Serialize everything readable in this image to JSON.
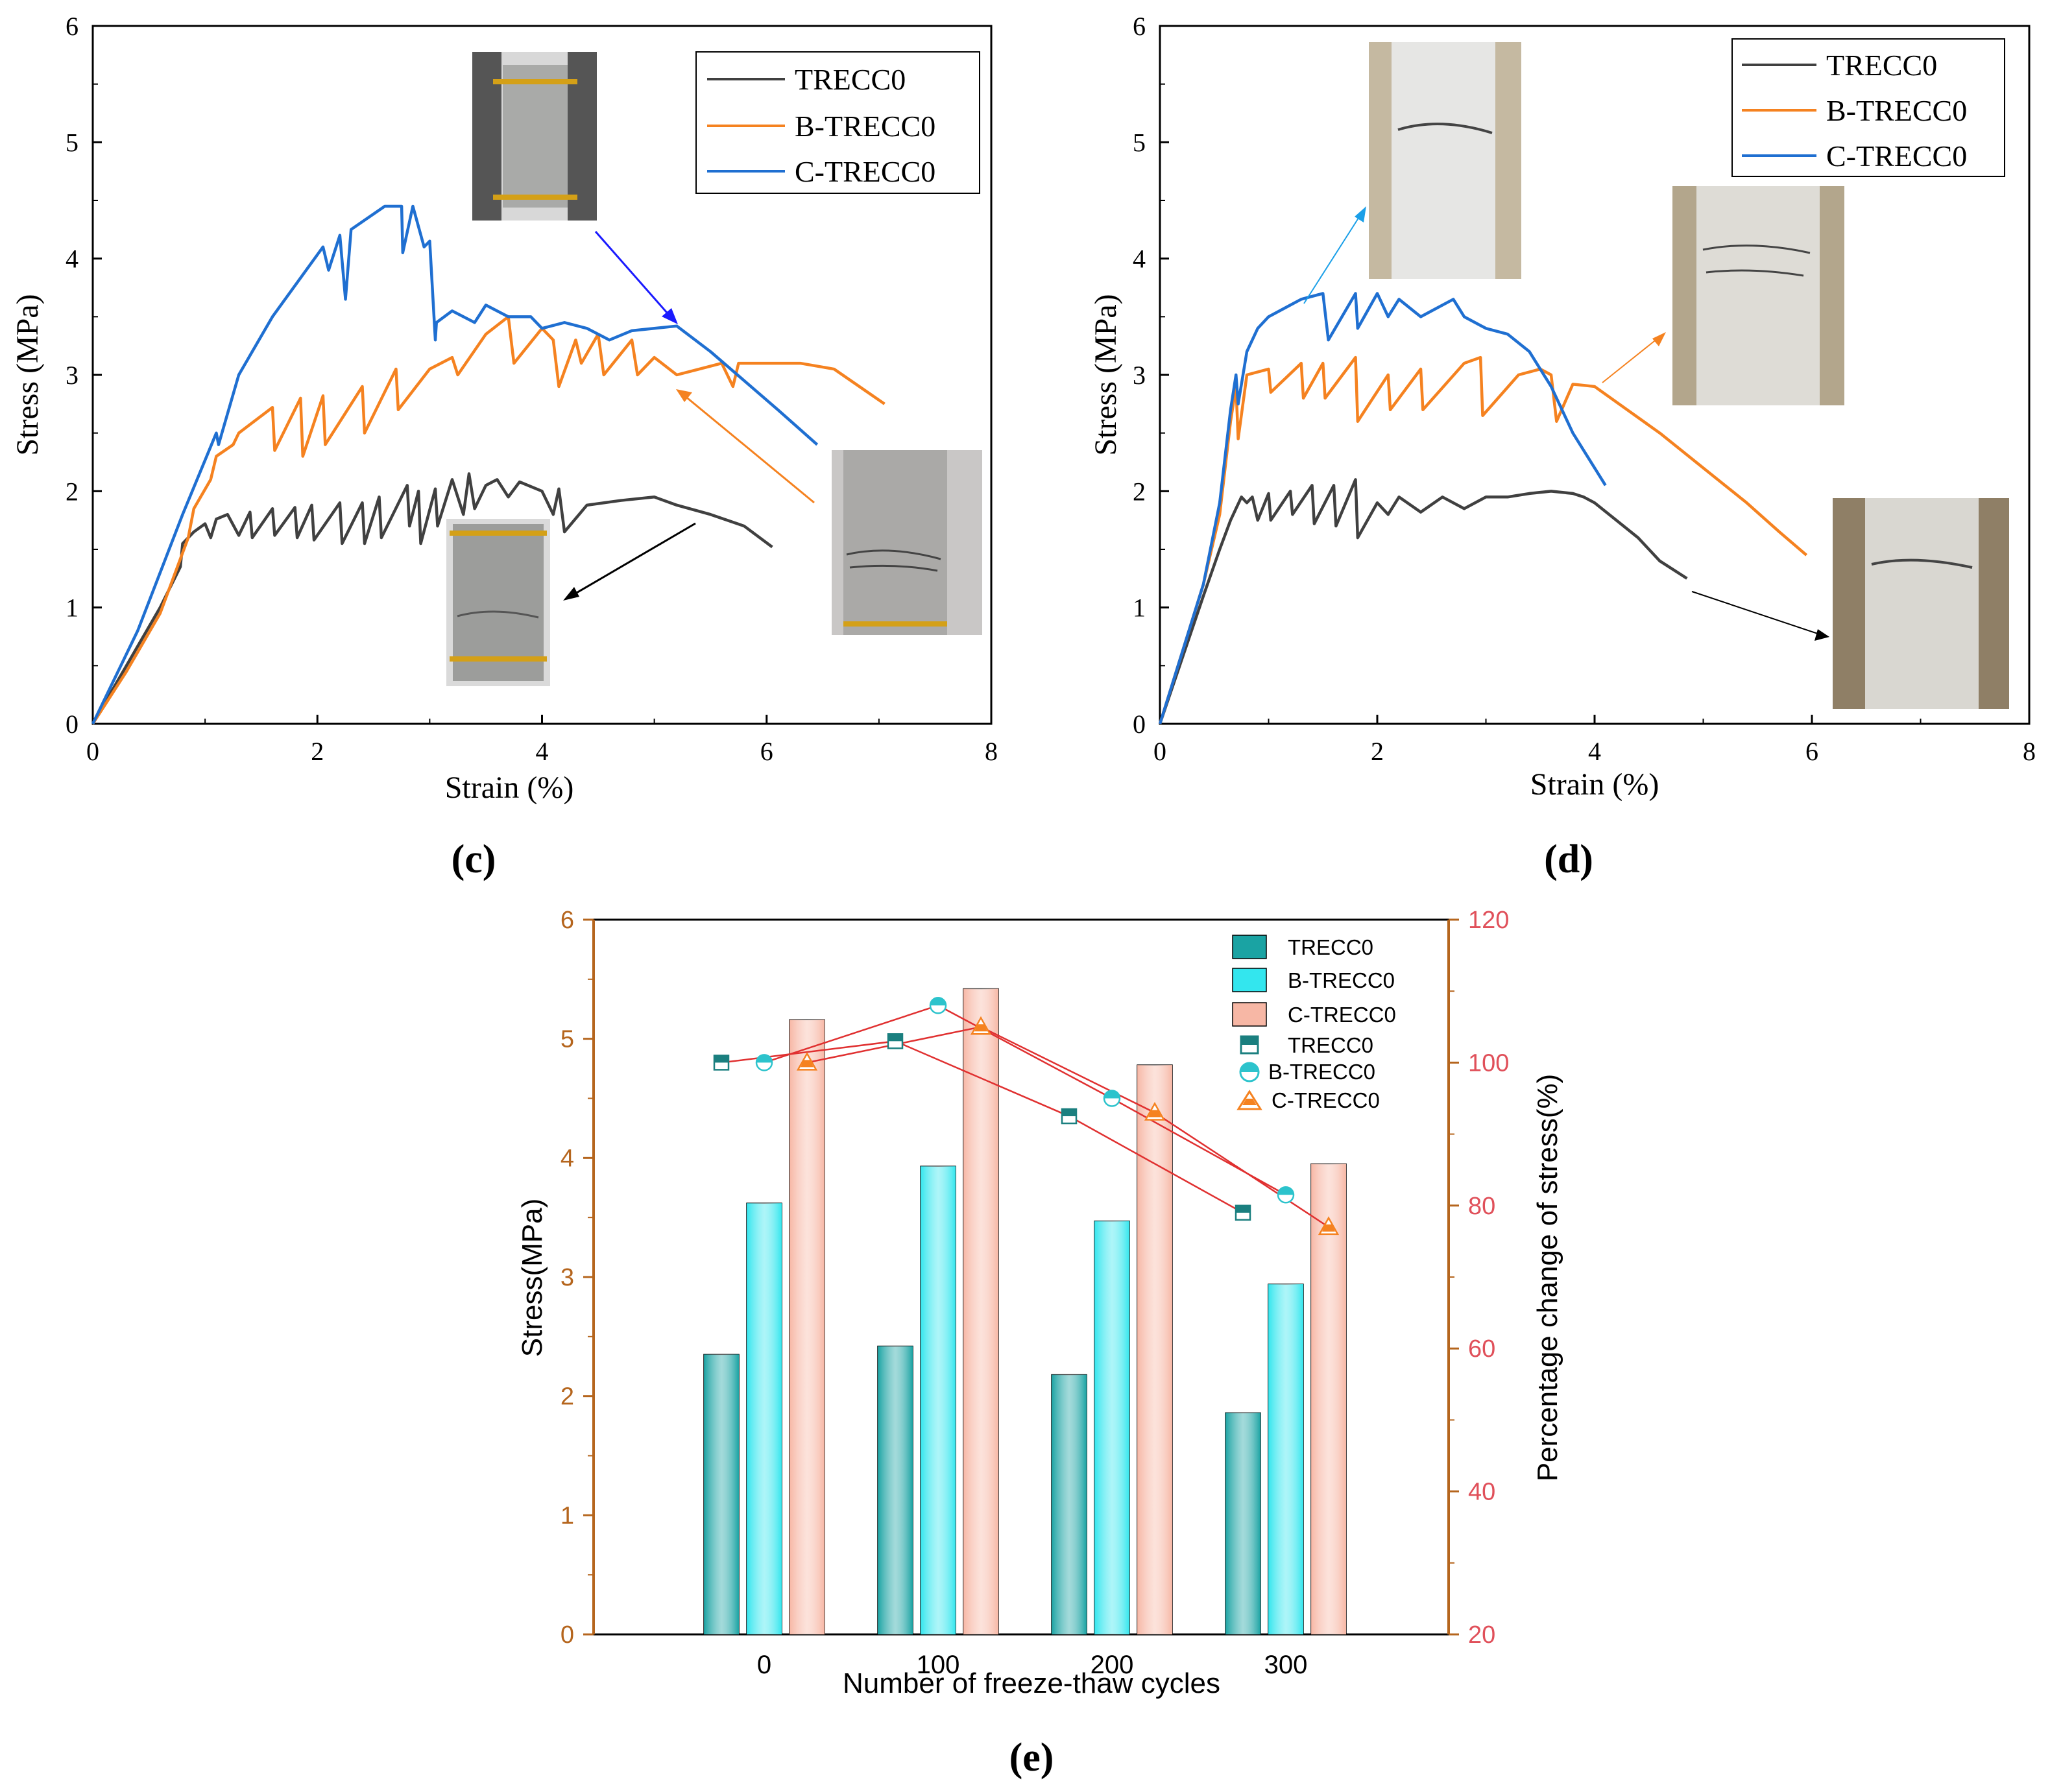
{
  "chart_data": [
    {
      "panel": "(c)",
      "type": "line",
      "xlabel": "Strain (%)",
      "ylabel": "Stress (MPa)",
      "xlim": [
        0,
        8
      ],
      "ylim": [
        0,
        6
      ],
      "xticks": [
        0,
        2,
        4,
        6,
        8
      ],
      "yticks": [
        0,
        1,
        2,
        3,
        4,
        5,
        6
      ],
      "legend_position": "top-right",
      "series": [
        {
          "name": "TRECC0",
          "color": "#404040",
          "x": [
            0,
            0.3,
            0.6,
            0.78,
            0.8,
            0.9,
            1.0,
            1.05,
            1.1,
            1.2,
            1.3,
            1.4,
            1.42,
            1.6,
            1.62,
            1.8,
            1.82,
            1.95,
            1.97,
            2.2,
            2.22,
            2.4,
            2.42,
            2.55,
            2.57,
            2.8,
            2.82,
            2.9,
            2.92,
            3.05,
            3.07,
            3.2,
            3.3,
            3.35,
            3.4,
            3.5,
            3.6,
            3.7,
            3.8,
            4.0,
            4.1,
            4.15,
            4.2,
            4.4,
            4.7,
            5.0,
            5.2,
            5.5,
            5.8,
            6.05
          ],
          "y": [
            0,
            0.5,
            1.0,
            1.35,
            1.55,
            1.65,
            1.72,
            1.6,
            1.76,
            1.8,
            1.62,
            1.82,
            1.6,
            1.85,
            1.62,
            1.86,
            1.6,
            1.88,
            1.58,
            1.9,
            1.55,
            1.9,
            1.55,
            1.95,
            1.6,
            2.05,
            1.7,
            2.0,
            1.55,
            2.02,
            1.7,
            2.1,
            1.8,
            2.15,
            1.85,
            2.05,
            2.1,
            1.95,
            2.08,
            2.0,
            1.8,
            2.02,
            1.65,
            1.88,
            1.92,
            1.95,
            1.88,
            1.8,
            1.7,
            1.52
          ]
        },
        {
          "name": "B-TRECC0",
          "color": "#f58220",
          "x": [
            0,
            0.3,
            0.6,
            0.85,
            0.9,
            1.05,
            1.1,
            1.25,
            1.3,
            1.6,
            1.62,
            1.85,
            1.87,
            2.05,
            2.07,
            2.4,
            2.42,
            2.7,
            2.72,
            3.0,
            3.2,
            3.25,
            3.5,
            3.7,
            3.75,
            4.0,
            4.1,
            4.15,
            4.3,
            4.35,
            4.5,
            4.55,
            4.8,
            4.85,
            5.0,
            5.2,
            5.4,
            5.6,
            5.7,
            5.75,
            6.0,
            6.3,
            6.6,
            6.9,
            7.05
          ],
          "y": [
            0,
            0.45,
            0.95,
            1.6,
            1.85,
            2.1,
            2.3,
            2.4,
            2.5,
            2.72,
            2.35,
            2.8,
            2.3,
            2.82,
            2.4,
            2.9,
            2.5,
            3.05,
            2.7,
            3.05,
            3.15,
            3.0,
            3.35,
            3.5,
            3.1,
            3.4,
            3.3,
            2.9,
            3.3,
            3.1,
            3.35,
            3.0,
            3.3,
            3.0,
            3.15,
            3.0,
            3.05,
            3.1,
            2.9,
            3.1,
            3.1,
            3.1,
            3.05,
            2.85,
            2.75
          ]
        },
        {
          "name": "C-TRECC0",
          "color": "#1f6fd1",
          "x": [
            0,
            0.4,
            0.8,
            1.1,
            1.12,
            1.3,
            1.6,
            1.9,
            2.05,
            2.1,
            2.2,
            2.25,
            2.3,
            2.6,
            2.75,
            2.76,
            2.85,
            2.95,
            3.0,
            3.05,
            3.06,
            3.2,
            3.4,
            3.5,
            3.6,
            3.7,
            3.9,
            4.0,
            4.2,
            4.4,
            4.6,
            4.8,
            5.0,
            5.2,
            5.5,
            5.8,
            6.1,
            6.45
          ],
          "y": [
            0,
            0.8,
            1.8,
            2.5,
            2.4,
            3.0,
            3.5,
            3.9,
            4.1,
            3.9,
            4.2,
            3.65,
            4.25,
            4.45,
            4.45,
            4.05,
            4.45,
            4.1,
            4.15,
            3.3,
            3.45,
            3.55,
            3.45,
            3.6,
            3.55,
            3.5,
            3.5,
            3.4,
            3.45,
            3.4,
            3.3,
            3.38,
            3.4,
            3.42,
            3.2,
            2.95,
            2.7,
            2.4
          ]
        }
      ]
    },
    {
      "panel": "(d)",
      "type": "line",
      "xlabel": "Strain (%)",
      "ylabel": "Stress (MPa)",
      "xlim": [
        0,
        8
      ],
      "ylim": [
        0,
        6
      ],
      "xticks": [
        0,
        2,
        4,
        6,
        8
      ],
      "yticks": [
        0,
        1,
        2,
        3,
        4,
        5,
        6
      ],
      "legend_position": "top-right",
      "series": [
        {
          "name": "TRECC0",
          "color": "#404040",
          "x": [
            0,
            0.2,
            0.4,
            0.55,
            0.65,
            0.7,
            0.75,
            0.8,
            0.85,
            0.9,
            1.0,
            1.02,
            1.2,
            1.22,
            1.4,
            1.42,
            1.6,
            1.62,
            1.8,
            1.82,
            2.0,
            2.1,
            2.2,
            2.4,
            2.6,
            2.8,
            3.0,
            3.2,
            3.4,
            3.6,
            3.8,
            3.9,
            4.0,
            4.2,
            4.4,
            4.6,
            4.85
          ],
          "y": [
            0,
            0.55,
            1.1,
            1.5,
            1.75,
            1.85,
            1.95,
            1.9,
            1.95,
            1.75,
            1.98,
            1.75,
            2.0,
            1.8,
            2.05,
            1.72,
            2.05,
            1.7,
            2.1,
            1.6,
            1.9,
            1.8,
            1.95,
            1.82,
            1.95,
            1.85,
            1.95,
            1.95,
            1.98,
            2.0,
            1.98,
            1.95,
            1.9,
            1.75,
            1.6,
            1.4,
            1.25
          ]
        },
        {
          "name": "B-TRECC0",
          "color": "#f58220",
          "x": [
            0,
            0.2,
            0.4,
            0.55,
            0.65,
            0.7,
            0.72,
            0.8,
            1.0,
            1.02,
            1.3,
            1.32,
            1.5,
            1.52,
            1.8,
            1.82,
            2.1,
            2.12,
            2.4,
            2.42,
            2.8,
            2.95,
            2.97,
            3.3,
            3.5,
            3.6,
            3.65,
            3.8,
            4.0,
            4.3,
            4.6,
            5.0,
            5.4,
            5.7,
            5.95
          ],
          "y": [
            0,
            0.6,
            1.2,
            1.8,
            2.6,
            2.9,
            2.45,
            3.0,
            3.05,
            2.85,
            3.1,
            2.8,
            3.1,
            2.8,
            3.15,
            2.6,
            3.0,
            2.7,
            3.05,
            2.7,
            3.1,
            3.15,
            2.65,
            3.0,
            3.05,
            3.0,
            2.6,
            2.92,
            2.9,
            2.7,
            2.5,
            2.2,
            1.9,
            1.65,
            1.45
          ]
        },
        {
          "name": "C-TRECC0",
          "color": "#1f6fd1",
          "x": [
            0,
            0.2,
            0.4,
            0.55,
            0.65,
            0.7,
            0.72,
            0.8,
            0.9,
            1.0,
            1.2,
            1.3,
            1.5,
            1.55,
            1.8,
            1.82,
            2.0,
            2.1,
            2.2,
            2.4,
            2.5,
            2.7,
            2.8,
            3.0,
            3.2,
            3.4,
            3.6,
            3.8,
            4.1
          ],
          "y": [
            0,
            0.6,
            1.2,
            1.9,
            2.7,
            3.0,
            2.75,
            3.2,
            3.4,
            3.5,
            3.6,
            3.65,
            3.7,
            3.3,
            3.7,
            3.4,
            3.7,
            3.5,
            3.65,
            3.5,
            3.55,
            3.65,
            3.5,
            3.4,
            3.35,
            3.2,
            2.9,
            2.5,
            2.05
          ]
        }
      ]
    },
    {
      "panel": "(e)",
      "type": "bar",
      "xlabel": "Number of freeze-thaw cycles",
      "ylabel": "Stress(MPa)",
      "y2label": "Percentage change of stress(%)",
      "categories": [
        "0",
        "100",
        "200",
        "300"
      ],
      "ylim": [
        0,
        6
      ],
      "y2lim": [
        20,
        120
      ],
      "yticks": [
        0,
        1,
        2,
        3,
        4,
        5,
        6
      ],
      "y2ticks": [
        20,
        40,
        60,
        80,
        100,
        120
      ],
      "legend_position": "top-right",
      "series": [
        {
          "name": "TRECC0",
          "color": "#1aa3a3",
          "values": [
            2.35,
            2.42,
            2.18,
            1.86
          ]
        },
        {
          "name": "B-TRECC0",
          "color": "#33e6ee",
          "values": [
            3.62,
            3.93,
            3.47,
            2.94
          ]
        },
        {
          "name": "C-TRECC0",
          "color": "#f7b7a5",
          "values": [
            5.16,
            5.42,
            4.78,
            3.95
          ]
        }
      ],
      "percent_series": [
        {
          "name": "TRECC0",
          "marker": "square",
          "color": "#1a7f7f",
          "values": [
            100,
            103,
            92.5,
            79
          ]
        },
        {
          "name": "B-TRECC0",
          "marker": "circle",
          "color": "#2cc3cc",
          "values": [
            100,
            108,
            95,
            81.5
          ]
        },
        {
          "name": "C-TRECC0",
          "marker": "triangle",
          "color": "#f58220",
          "values": [
            100,
            105,
            93,
            77
          ]
        }
      ]
    }
  ],
  "labels": {
    "c": "(c)",
    "d": "(d)",
    "e": "(e)"
  },
  "colors": {
    "axis_left_e": "#b5651d",
    "axis_right_e": "#e0505a",
    "connector": "#e03030"
  }
}
